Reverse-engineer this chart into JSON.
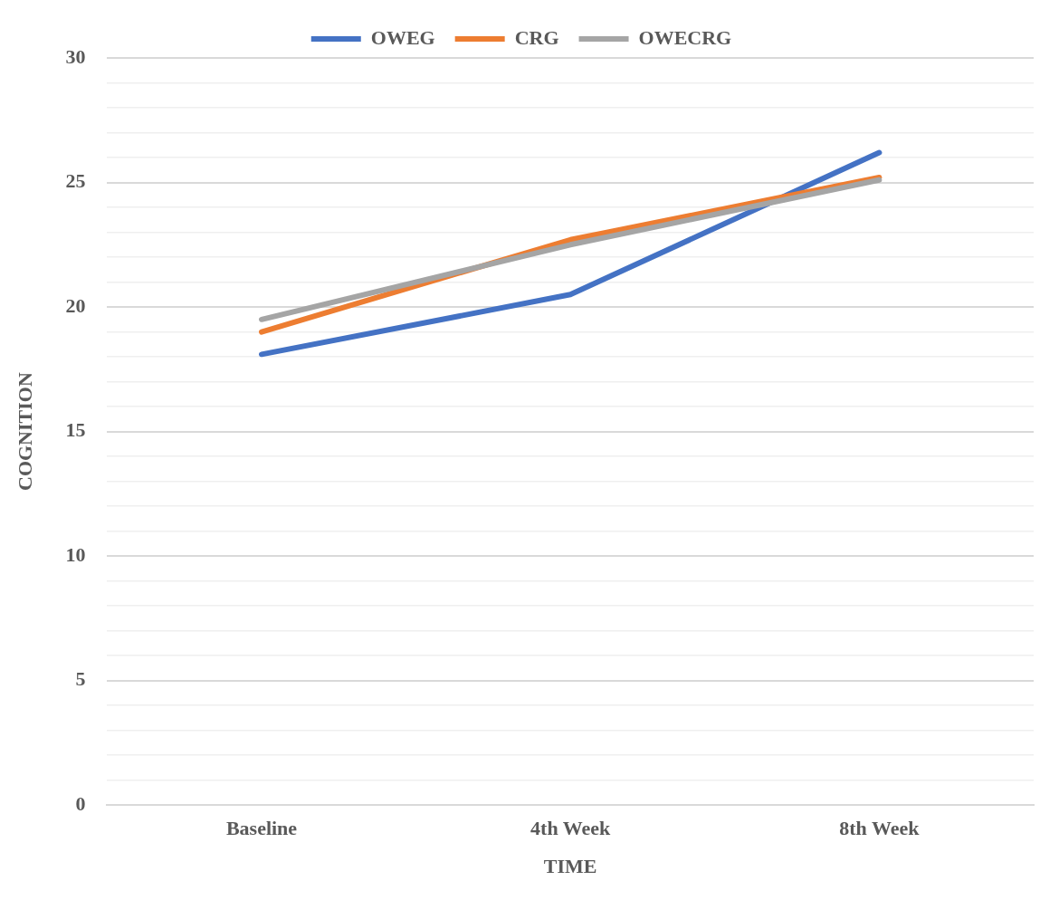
{
  "chart_data": {
    "type": "line",
    "xlabel": "TIME",
    "ylabel": "COGNITION",
    "categories": [
      "Baseline",
      "4th Week",
      "8th Week"
    ],
    "series": [
      {
        "name": "OWEG",
        "color": "#4472c4",
        "values": [
          18.1,
          20.5,
          26.2
        ]
      },
      {
        "name": "CRG",
        "color": "#ed7d31",
        "values": [
          19.0,
          22.7,
          25.2
        ]
      },
      {
        "name": "OWECRG",
        "color": "#a5a5a5",
        "values": [
          19.5,
          22.5,
          25.1
        ]
      }
    ],
    "ylim": [
      0,
      30
    ],
    "yticks": [
      0,
      {
        "value": 1,
        "label": null
      },
      {
        "value": 2,
        "label": null
      },
      {
        "value": 3,
        "label": null
      },
      {
        "value": 4,
        "label": null
      },
      5,
      {
        "value": 6,
        "label": null
      },
      {
        "value": 7,
        "label": null
      },
      {
        "value": 8,
        "label": null
      },
      {
        "value": 9,
        "label": null
      },
      10,
      {
        "value": 11,
        "label": null
      },
      {
        "value": 12,
        "label": null
      },
      {
        "value": 13,
        "label": null
      },
      {
        "value": 14,
        "label": null
      },
      15,
      {
        "value": 16,
        "label": null
      },
      {
        "value": 17,
        "label": null
      },
      {
        "value": 18,
        "label": null
      },
      {
        "value": 19,
        "label": null
      },
      20,
      {
        "value": 21,
        "label": null
      },
      {
        "value": 22,
        "label": null
      },
      {
        "value": 23,
        "label": null
      },
      {
        "value": 24,
        "label": null
      },
      25,
      {
        "value": 26,
        "label": null
      },
      {
        "value": 27,
        "label": null
      },
      {
        "value": 28,
        "label": null
      },
      {
        "value": 29,
        "label": null
      },
      30
    ],
    "grid": "y",
    "legend": "top",
    "marker": "none",
    "line_style": "solid"
  }
}
